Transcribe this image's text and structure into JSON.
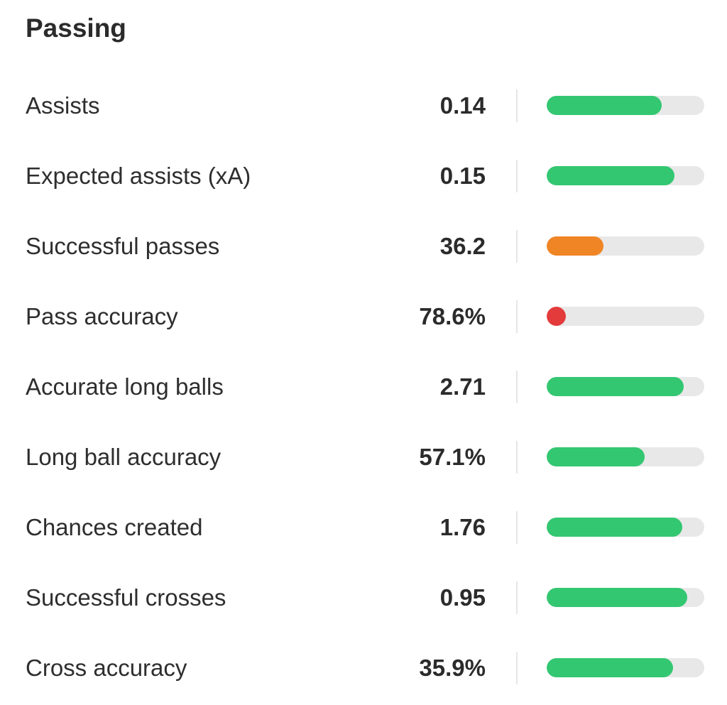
{
  "section": {
    "title": "Passing"
  },
  "colors": {
    "good": "#33c771",
    "average": "#f08525",
    "poor": "#e33b3b",
    "track": "#e8e8e8"
  },
  "stats": [
    {
      "label": "Assists",
      "value": "0.14",
      "percentile": 0.73,
      "rating": "good"
    },
    {
      "label": "Expected assists (xA)",
      "value": "0.15",
      "percentile": 0.81,
      "rating": "good"
    },
    {
      "label": "Successful passes",
      "value": "36.2",
      "percentile": 0.36,
      "rating": "average"
    },
    {
      "label": "Pass accuracy",
      "value": "78.6%",
      "percentile": 0.12,
      "rating": "poor"
    },
    {
      "label": "Accurate long balls",
      "value": "2.71",
      "percentile": 0.87,
      "rating": "good"
    },
    {
      "label": "Long ball accuracy",
      "value": "57.1%",
      "percentile": 0.62,
      "rating": "good"
    },
    {
      "label": "Chances created",
      "value": "1.76",
      "percentile": 0.86,
      "rating": "good"
    },
    {
      "label": "Successful crosses",
      "value": "0.95",
      "percentile": 0.89,
      "rating": "good"
    },
    {
      "label": "Cross accuracy",
      "value": "35.9%",
      "percentile": 0.8,
      "rating": "good"
    }
  ]
}
